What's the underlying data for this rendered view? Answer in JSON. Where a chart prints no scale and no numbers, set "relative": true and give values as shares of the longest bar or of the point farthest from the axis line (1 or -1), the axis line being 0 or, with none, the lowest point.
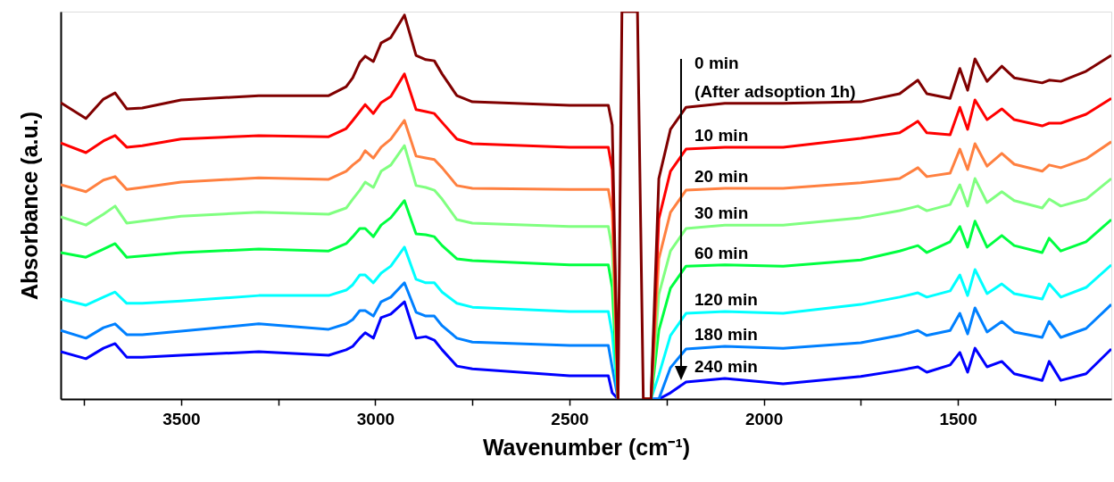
{
  "chart_data": {
    "type": "line",
    "xlabel": "Wavenumber (cm⁻¹)",
    "ylabel": "Absorbance (a.u.)",
    "relative": true,
    "line_style": "solid",
    "xlim": [
      3810,
      1105
    ],
    "xticks": [
      {
        "value": 3750,
        "label": null
      },
      3500,
      {
        "value": 3250,
        "label": null
      },
      3000,
      {
        "value": 2750,
        "label": null
      },
      2500,
      {
        "value": 2250,
        "label": null
      },
      2000,
      {
        "value": 1750,
        "label": null
      },
      1500,
      {
        "value": 1250,
        "label": null
      }
    ],
    "x": [
      3810,
      3745,
      3700,
      3670,
      3640,
      3600,
      3500,
      3300,
      3120,
      3075,
      3058,
      3040,
      3026,
      3005,
      2985,
      2960,
      2925,
      2895,
      2870,
      2848,
      2828,
      2790,
      2750,
      2500,
      2400,
      2390,
      2375,
      2365,
      2345,
      2325,
      2310,
      2290,
      2270,
      2240,
      2200,
      2100,
      1950,
      1750,
      1650,
      1603,
      1580,
      1520,
      1495,
      1475,
      1456,
      1425,
      1387,
      1355,
      1283,
      1265,
      1235,
      1170,
      1105
    ],
    "series": [
      {
        "name": "0 min\n(After adsoption 1h)",
        "color": "#800000",
        "values": [
          0.765,
          0.724,
          0.774,
          0.79,
          0.749,
          0.751,
          0.772,
          0.783,
          0.783,
          0.806,
          0.829,
          0.869,
          0.885,
          0.871,
          0.919,
          0.933,
          0.991,
          0.887,
          0.876,
          0.873,
          0.839,
          0.783,
          0.767,
          0.758,
          0.758,
          0.707,
          0,
          1,
          1,
          1,
          0,
          0,
          0.569,
          0.696,
          0.753,
          0.763,
          0.763,
          0.767,
          0.788,
          0.823,
          0.788,
          0.776,
          0.853,
          0.797,
          0.878,
          0.82,
          0.859,
          0.829,
          0.816,
          0.823,
          0.82,
          0.846,
          0.887
        ]
      },
      {
        "name": "10 min",
        "color": "#ff0000",
        "values": [
          0.661,
          0.636,
          0.666,
          0.68,
          0.65,
          0.654,
          0.671,
          0.68,
          0.677,
          0.698,
          0.719,
          0.742,
          0.76,
          0.737,
          0.765,
          0.781,
          0.839,
          0.747,
          0.742,
          0.737,
          0.714,
          0.671,
          0.659,
          0.65,
          0.65,
          0.592,
          0,
          null,
          null,
          null,
          0,
          0,
          0.465,
          0.588,
          0.645,
          0.65,
          0.65,
          0.673,
          0.687,
          0.717,
          0.687,
          0.682,
          0.753,
          0.696,
          0.772,
          0.721,
          0.749,
          0.721,
          0.705,
          0.712,
          0.712,
          0.735,
          0.776
        ]
      },
      {
        "name": "20 min",
        "color": "#ff8040",
        "values": [
          0.553,
          0.535,
          0.565,
          0.574,
          0.541,
          0.546,
          0.56,
          0.571,
          0.567,
          0.588,
          0.604,
          0.618,
          0.641,
          0.622,
          0.65,
          0.671,
          0.719,
          0.627,
          0.622,
          0.618,
          0.597,
          0.551,
          0.544,
          0.541,
          0.541,
          0.484,
          0,
          null,
          null,
          null,
          0,
          0,
          0.362,
          0.482,
          0.539,
          0.544,
          0.544,
          0.558,
          0.569,
          0.597,
          0.574,
          0.583,
          0.645,
          0.592,
          0.659,
          0.601,
          0.634,
          0.606,
          0.588,
          0.604,
          0.597,
          0.62,
          0.664
        ]
      },
      {
        "name": "30 min",
        "color": "#80ff80",
        "values": [
          0.47,
          0.449,
          0.477,
          0.498,
          0.454,
          0.459,
          0.472,
          0.482,
          0.477,
          0.493,
          0.516,
          0.539,
          0.56,
          0.546,
          0.588,
          0.604,
          0.654,
          0.551,
          0.546,
          0.539,
          0.516,
          0.463,
          0.454,
          0.445,
          0.445,
          0.387,
          0,
          null,
          null,
          null,
          0,
          0,
          0.27,
          0.382,
          0.44,
          0.449,
          0.449,
          0.468,
          0.486,
          0.498,
          0.486,
          0.502,
          0.553,
          0.498,
          0.569,
          0.507,
          0.535,
          0.512,
          0.493,
          0.516,
          0.498,
          0.516,
          0.569
        ]
      },
      {
        "name": "60 min",
        "color": "#00ff40",
        "values": [
          0.378,
          0.366,
          0.387,
          0.401,
          0.366,
          0.369,
          0.378,
          0.387,
          0.382,
          0.401,
          0.419,
          0.44,
          0.44,
          0.419,
          0.449,
          0.468,
          0.512,
          0.426,
          0.424,
          0.419,
          0.396,
          0.362,
          0.357,
          0.346,
          0.346,
          0.288,
          0,
          null,
          null,
          null,
          0,
          0,
          0.177,
          0.286,
          0.343,
          0.346,
          0.343,
          0.359,
          0.382,
          0.396,
          0.378,
          0.406,
          0.445,
          0.392,
          0.459,
          0.392,
          0.422,
          0.396,
          0.378,
          0.415,
          0.382,
          0.406,
          0.463
        ]
      },
      {
        "name": "120 min",
        "color": "#00ffff",
        "values": [
          0.258,
          0.242,
          0.263,
          0.276,
          0.247,
          0.247,
          0.253,
          0.267,
          0.267,
          0.281,
          0.295,
          0.32,
          0.32,
          0.3,
          0.325,
          0.343,
          0.392,
          0.309,
          0.3,
          0.3,
          0.276,
          0.247,
          0.237,
          0.226,
          0.226,
          0.168,
          0,
          null,
          null,
          null,
          0,
          0,
          0.062,
          0.164,
          0.221,
          0.226,
          0.221,
          0.244,
          0.263,
          0.274,
          0.263,
          0.279,
          0.32,
          0.267,
          0.334,
          0.272,
          0.297,
          0.272,
          0.258,
          0.297,
          0.263,
          0.288,
          0.346
        ]
      },
      {
        "name": "180 min",
        "color": "#0080ff",
        "values": [
          0.177,
          0.157,
          0.184,
          0.194,
          0.166,
          0.166,
          0.175,
          0.194,
          0.18,
          0.194,
          0.205,
          0.228,
          0.228,
          0.214,
          0.251,
          0.263,
          0.3,
          0.224,
          0.214,
          0.214,
          0.189,
          0.157,
          0.147,
          0.138,
          0.138,
          0.081,
          0,
          null,
          null,
          null,
          0,
          0,
          0,
          0.081,
          0.129,
          0.136,
          0.131,
          0.145,
          0.164,
          0.177,
          0.164,
          0.177,
          0.221,
          0.168,
          0.235,
          0.173,
          0.2,
          0.173,
          0.159,
          0.2,
          0.159,
          0.182,
          0.244
        ]
      },
      {
        "name": "240 min",
        "color": "#0000ff",
        "values": [
          0.122,
          0.104,
          0.131,
          0.143,
          0.108,
          0.108,
          0.113,
          0.122,
          0.113,
          0.127,
          0.136,
          0.157,
          0.171,
          0.157,
          0.21,
          0.219,
          0.251,
          0.157,
          0.161,
          0.152,
          0.127,
          0.085,
          0.078,
          0.06,
          0.06,
          0.016,
          0,
          null,
          null,
          null,
          0,
          0,
          0,
          0.016,
          0.044,
          0.053,
          0.039,
          0.058,
          0.074,
          0.083,
          0.069,
          0.088,
          0.12,
          0.069,
          0.131,
          0.083,
          0.097,
          0.065,
          0.048,
          0.097,
          0.048,
          0.065,
          0.129
        ]
      }
    ]
  }
}
